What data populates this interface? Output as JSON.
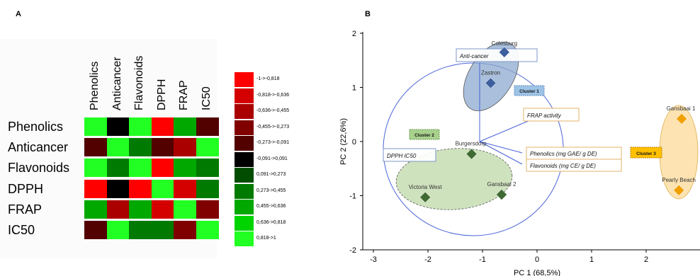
{
  "panels": {
    "a": "A",
    "b": "B"
  },
  "heatmap": {
    "columns": [
      "Phenolics",
      "Anticancer",
      "Flavonoids",
      "DPPH",
      "FRAP",
      "IC50"
    ],
    "rows": [
      "Phenolics",
      "Anticancer",
      "Flavonoids",
      "DPPH",
      "FRAP",
      "IC50"
    ],
    "values": [
      [
        1.0,
        -0.05,
        0.9,
        -0.95,
        0.6,
        -0.1
      ],
      [
        -0.1,
        1.0,
        0.3,
        -0.1,
        -0.5,
        0.9
      ],
      [
        0.9,
        0.3,
        1.0,
        -0.9,
        0.5,
        0.3
      ],
      [
        -0.95,
        -0.05,
        -0.95,
        1.0,
        -0.8,
        0.3
      ],
      [
        0.6,
        -0.5,
        0.6,
        -0.8,
        1.0,
        -0.45
      ],
      [
        -0.1,
        0.9,
        0.3,
        0.3,
        -0.45,
        1.0
      ]
    ],
    "legend": [
      {
        "label": "-1->-0,818",
        "color": "#ff0000"
      },
      {
        "label": "-0,818->-0,636",
        "color": "#d40000"
      },
      {
        "label": "-0,636->-0,455",
        "color": "#aa0000"
      },
      {
        "label": "-0,455->-0,273",
        "color": "#800000"
      },
      {
        "label": "-0,273->-0,091",
        "color": "#520000"
      },
      {
        "label": "-0,091->0,091",
        "color": "#000000"
      },
      {
        "label": "0,091->0,273",
        "color": "#004d00"
      },
      {
        "label": "0,273->0,455",
        "color": "#007a00"
      },
      {
        "label": "0,455->0,636",
        "color": "#00a800"
      },
      {
        "label": "0,636->0,818",
        "color": "#00d400"
      },
      {
        "label": "0,818->1",
        "color": "#22ff22"
      }
    ]
  },
  "chart_data": [
    {
      "type": "heatmap",
      "title": "",
      "x_categories": [
        "Phenolics",
        "Anticancer",
        "Flavonoids",
        "DPPH",
        "FRAP",
        "IC50"
      ],
      "y_categories": [
        "Phenolics",
        "Anticancer",
        "Flavonoids",
        "DPPH",
        "FRAP",
        "IC50"
      ],
      "note_values": "correlation coefficients estimated from cell colour classes",
      "values": [
        [
          1.0,
          -0.05,
          0.9,
          -0.95,
          0.6,
          -0.1
        ],
        [
          -0.1,
          1.0,
          0.3,
          -0.1,
          -0.5,
          0.9
        ],
        [
          0.9,
          0.3,
          1.0,
          -0.9,
          0.5,
          0.3
        ],
        [
          -0.95,
          -0.05,
          -0.95,
          1.0,
          -0.8,
          0.3
        ],
        [
          0.6,
          -0.5,
          0.6,
          -0.8,
          1.0,
          -0.45
        ],
        [
          -0.1,
          0.9,
          0.3,
          0.3,
          -0.45,
          1.0
        ]
      ]
    },
    {
      "type": "scatter",
      "xlabel": "PC 1 (68,5%)",
      "ylabel": "PC 2 (22,6%)",
      "xlim": [
        -3,
        3
      ],
      "ylim": [
        -2,
        2
      ],
      "xticks": [
        -3,
        -2,
        -1,
        0,
        1,
        2
      ],
      "yticks": [
        -2,
        -1,
        0,
        1,
        2
      ],
      "points": [
        {
          "name": "Colesburg",
          "x": -0.6,
          "y": 1.65,
          "color": "#3d5f9e"
        },
        {
          "name": "Zastron",
          "x": -0.85,
          "y": 1.08,
          "color": "#3d5f9e"
        },
        {
          "name": "Burgersdorp",
          "x": -1.2,
          "y": -0.23,
          "color": "#3f6b33"
        },
        {
          "name": "Victoria West",
          "x": -2.05,
          "y": -1.03,
          "color": "#3f6b33"
        },
        {
          "name": "Gansbaai 2",
          "x": -0.65,
          "y": -0.98,
          "color": "#3f6b33"
        },
        {
          "name": "Gansbaai 1",
          "x": 2.65,
          "y": 0.42,
          "color": "#f0a000"
        },
        {
          "name": "Pearly Beach",
          "x": 2.6,
          "y": -0.9,
          "color": "#f0a000"
        }
      ],
      "variables": [
        {
          "name": "Anti-cancer",
          "x": -0.85,
          "y": 1.65,
          "box": "blue"
        },
        {
          "name": "FRAP activity",
          "x": 0.3,
          "y": 0.5,
          "box": "orange"
        },
        {
          "name": "DPPH IC50",
          "x": -1.9,
          "y": -0.28,
          "box": "blue"
        },
        {
          "name": "Phenolics (mg GAE/ g DE)",
          "x": -0.2,
          "y": -0.22,
          "box": "orange"
        },
        {
          "name": "Flavonoids (mg CE/ g DE)",
          "x": -0.2,
          "y": -0.42,
          "box": "orange"
        }
      ],
      "clusters": [
        {
          "name": "Cluster 1",
          "color": "#9dc3e6"
        },
        {
          "name": "Cluster 2",
          "color": "#a9d18e"
        },
        {
          "name": "Cluster 3",
          "color": "#ffc000"
        }
      ]
    }
  ]
}
